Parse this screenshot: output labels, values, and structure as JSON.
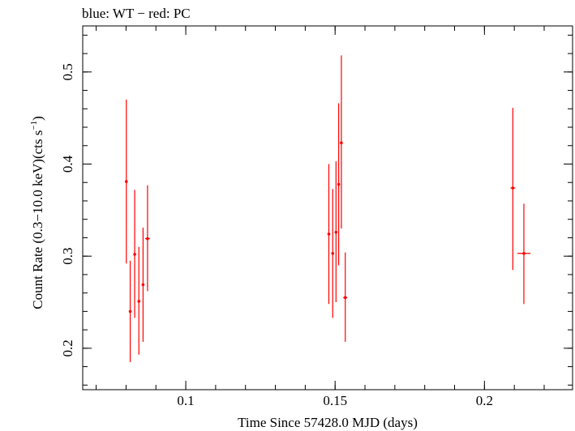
{
  "chart_data": {
    "type": "scatter",
    "title": "blue: WT − red: PC",
    "xlabel": "Time Since 57428.0 MJD (days)",
    "ylabel_main": "Count Rate (0.3−10.0 keV)(cts s",
    "ylabel_sup": "−1",
    "ylabel_end": ")",
    "xlim": [
      0.0655,
      0.2295
    ],
    "ylim": [
      0.155,
      0.55
    ],
    "xticks": [
      {
        "value": 0.1,
        "label": "0.1"
      },
      {
        "value": 0.15,
        "label": "0.15"
      },
      {
        "value": 0.2,
        "label": "0.2"
      }
    ],
    "yticks": [
      {
        "value": 0.2,
        "label": "0.2"
      },
      {
        "value": 0.3,
        "label": "0.3"
      },
      {
        "value": 0.4,
        "label": "0.4"
      },
      {
        "value": 0.5,
        "label": "0.5"
      }
    ],
    "xminor_step": 0.01,
    "yminor_step": 0.02,
    "grid": false,
    "series": [
      {
        "name": "PC",
        "color": "#ff0000",
        "points": [
          {
            "x": 0.0801,
            "y": 0.381,
            "ylo": 0.292,
            "yhi": 0.47,
            "xerr": 0.0003
          },
          {
            "x": 0.0814,
            "y": 0.24,
            "ylo": 0.185,
            "yhi": 0.295,
            "xerr": 0.0004
          },
          {
            "x": 0.0829,
            "y": 0.302,
            "ylo": 0.233,
            "yhi": 0.372,
            "xerr": 0.0004
          },
          {
            "x": 0.0843,
            "y": 0.251,
            "ylo": 0.193,
            "yhi": 0.31,
            "xerr": 0.0004
          },
          {
            "x": 0.0857,
            "y": 0.269,
            "ylo": 0.207,
            "yhi": 0.331,
            "xerr": 0.0004
          },
          {
            "x": 0.0872,
            "y": 0.319,
            "ylo": 0.262,
            "yhi": 0.377,
            "xerr": 0.0008
          },
          {
            "x": 0.1479,
            "y": 0.324,
            "ylo": 0.248,
            "yhi": 0.4,
            "xerr": 0.0004
          },
          {
            "x": 0.1492,
            "y": 0.303,
            "ylo": 0.233,
            "yhi": 0.373,
            "xerr": 0.0004
          },
          {
            "x": 0.1503,
            "y": 0.326,
            "ylo": 0.25,
            "yhi": 0.403,
            "xerr": 0.0004
          },
          {
            "x": 0.1512,
            "y": 0.378,
            "ylo": 0.29,
            "yhi": 0.466,
            "xerr": 0.0004
          },
          {
            "x": 0.1521,
            "y": 0.423,
            "ylo": 0.33,
            "yhi": 0.518,
            "xerr": 0.0004
          },
          {
            "x": 0.1534,
            "y": 0.255,
            "ylo": 0.207,
            "yhi": 0.304,
            "xerr": 0.0007
          },
          {
            "x": 0.2095,
            "y": 0.374,
            "ylo": 0.285,
            "yhi": 0.461,
            "xerr": 0.0008
          },
          {
            "x": 0.2132,
            "y": 0.303,
            "ylo": 0.248,
            "yhi": 0.357,
            "xerr": 0.0022
          }
        ]
      }
    ]
  }
}
